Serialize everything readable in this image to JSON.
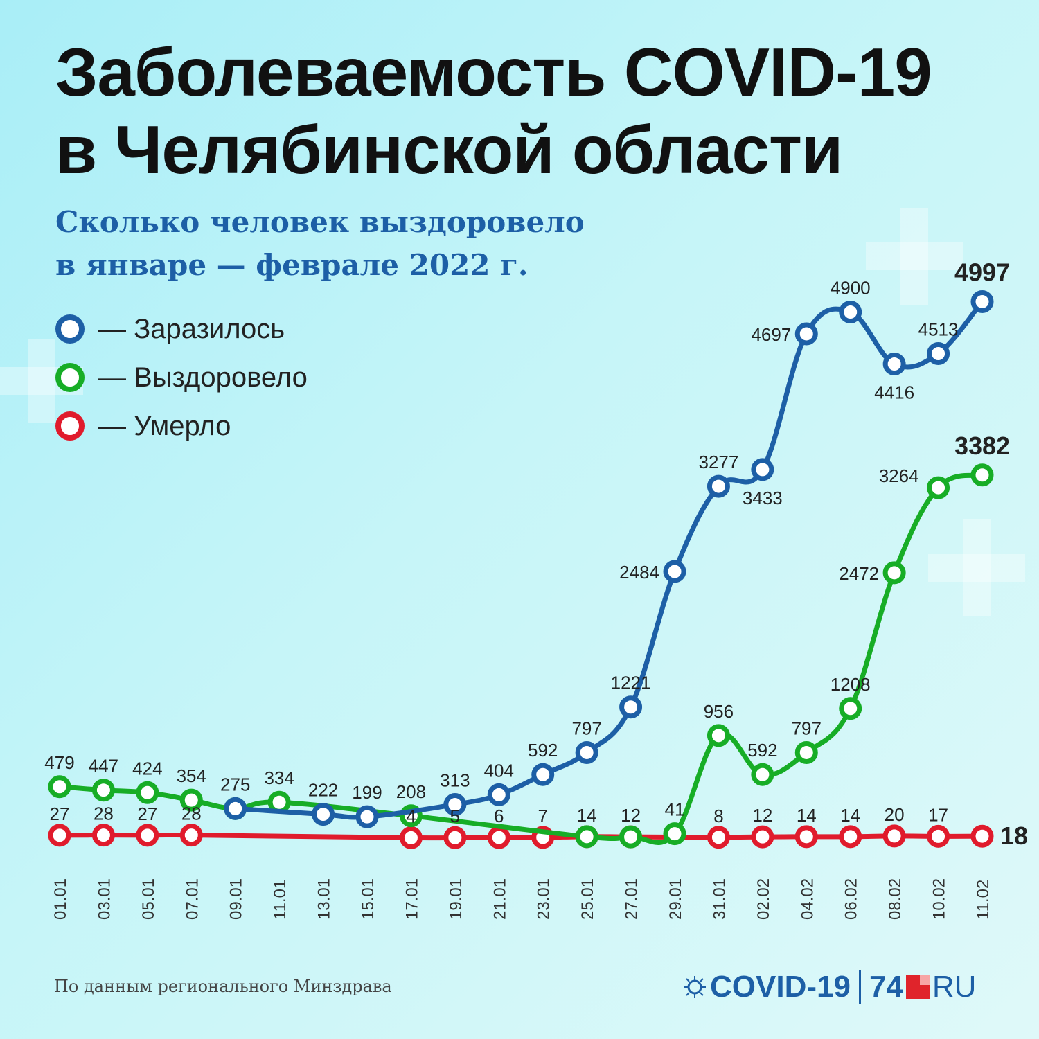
{
  "title_line1": "Заболеваемость COVID-19",
  "title_line2": "в Челябинской области",
  "subtitle_line1": "Сколько человек выздоровело",
  "subtitle_line2": "в январе — феврале 2022 г.",
  "legend": [
    {
      "label": "— Заразилось",
      "color": "#1d5fa6"
    },
    {
      "label": "— Выздоровело",
      "color": "#17ad26"
    },
    {
      "label": "— Умерло",
      "color": "#e01b2c"
    }
  ],
  "source": "По данным регионального Минздрава",
  "logo": {
    "covid": "COVID-19",
    "num": "74",
    "ru": "RU"
  },
  "chart_data": {
    "type": "line",
    "x": [
      "01.01",
      "03.01",
      "05.01",
      "07.01",
      "09.01",
      "11.01",
      "13.01",
      "15.01",
      "17.01",
      "19.01",
      "21.01",
      "23.01",
      "25.01",
      "27.01",
      "29.01",
      "31.01",
      "02.02",
      "04.02",
      "06.02",
      "08.02",
      "10.02",
      "11.02"
    ],
    "series": [
      {
        "name": "Заразилось",
        "color": "#1d5fa6",
        "values": [
          null,
          null,
          null,
          null,
          275,
          null,
          222,
          199,
          null,
          313,
          404,
          592,
          797,
          1221,
          2484,
          3277,
          3433,
          4697,
          4900,
          4416,
          4513,
          4997
        ],
        "labels": [
          "",
          "",
          "",
          "",
          "",
          "",
          "222",
          "199",
          "",
          "313",
          "404",
          "592",
          "797",
          "1221",
          "2484",
          "3277",
          "3433",
          "4697",
          "4900",
          "4416",
          "4513",
          "4997"
        ]
      },
      {
        "name": "Выздоровело",
        "color": "#17ad26",
        "values": [
          479,
          447,
          424,
          354,
          275,
          334,
          null,
          null,
          208,
          null,
          null,
          null,
          14,
          12,
          41,
          956,
          592,
          797,
          1208,
          2472,
          3264,
          3382
        ],
        "labels": [
          "479",
          "447",
          "424",
          "354",
          "275",
          "334",
          "",
          "",
          "208",
          "",
          "",
          "",
          "",
          "",
          "41",
          "956",
          "592",
          "797",
          "1208",
          "2472",
          "3264",
          "3382"
        ]
      },
      {
        "name": "Умерло",
        "color": "#e01b2c",
        "values": [
          27,
          28,
          27,
          28,
          null,
          null,
          null,
          null,
          4,
          5,
          6,
          7,
          14,
          12,
          null,
          8,
          12,
          14,
          14,
          20,
          17,
          18
        ],
        "labels": [
          "27",
          "28",
          "27",
          "28",
          "",
          "",
          "",
          "",
          "4",
          "5",
          "6",
          "7",
          "14",
          "12",
          "",
          "8",
          "12",
          "14",
          "14",
          "20",
          "17",
          "18"
        ]
      }
    ]
  }
}
